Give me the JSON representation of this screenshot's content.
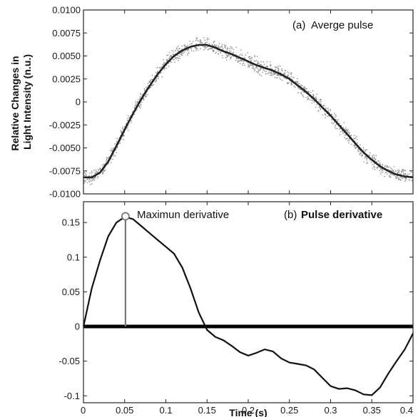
{
  "chart_data": [
    {
      "type": "scatter",
      "panel": "a",
      "annotation_prefix": "(a)",
      "annotation_text": "Averge pulse",
      "ylabel_lines": [
        "Relative Changes in",
        "Light Intensity (n.u.)"
      ],
      "xlim": [
        0,
        0.4
      ],
      "ylim": [
        -0.01,
        0.01
      ],
      "yticks": [
        "0.0100",
        "0.0075",
        "0.0050",
        "0.0025",
        "0",
        "-0.0025",
        "-0.0050",
        "-0.0075",
        "-0.0100"
      ],
      "grid": false,
      "series": [
        {
          "kind": "line",
          "color": "#222222",
          "x": [
            0,
            0.01,
            0.02,
            0.03,
            0.04,
            0.05,
            0.06,
            0.07,
            0.08,
            0.09,
            0.1,
            0.11,
            0.12,
            0.13,
            0.14,
            0.15,
            0.16,
            0.17,
            0.18,
            0.19,
            0.2,
            0.21,
            0.22,
            0.23,
            0.24,
            0.25,
            0.26,
            0.27,
            0.28,
            0.29,
            0.3,
            0.31,
            0.32,
            0.33,
            0.34,
            0.35,
            0.36,
            0.37,
            0.38,
            0.39,
            0.4
          ],
          "y": [
            -0.0082,
            -0.0082,
            -0.0077,
            -0.0065,
            -0.0048,
            -0.003,
            -0.0013,
            0.0003,
            0.0017,
            0.003,
            0.0041,
            0.005,
            0.0056,
            0.006,
            0.0062,
            0.0062,
            0.0059,
            0.0055,
            0.0052,
            0.0048,
            0.0044,
            0.004,
            0.0037,
            0.0034,
            0.003,
            0.0025,
            0.0018,
            0.0011,
            0.0003,
            -0.0006,
            -0.0015,
            -0.0025,
            -0.0035,
            -0.0045,
            -0.0055,
            -0.0063,
            -0.007,
            -0.0075,
            -0.0079,
            -0.0081,
            -0.0082
          ]
        },
        {
          "kind": "scatter",
          "color": "#8a8a8a",
          "description_of_points": "raw samples scattered about the average pulse",
          "spread": 0.0008,
          "count": 1400
        }
      ]
    },
    {
      "type": "line",
      "panel": "b",
      "annotation_prefix": "(b)",
      "annotation_text": "Pulse derivative",
      "marker_label": "Maximun derivative",
      "xlabel": "Time (s)",
      "xlim": [
        0,
        0.4
      ],
      "ylim": [
        -0.11,
        0.18
      ],
      "xticks": [
        "0",
        "0.05",
        "0.1",
        "0.15",
        "0.2",
        "0.25",
        "0.3",
        "0.35",
        "0.4"
      ],
      "yticks": [
        "0.15",
        "0.1",
        "0.05",
        "0",
        "-0.05",
        "-0.1"
      ],
      "grid": false,
      "marker": {
        "x": 0.051,
        "y": 0.159
      },
      "series": [
        {
          "kind": "line",
          "color": "#111111",
          "x": [
            0,
            0.01,
            0.02,
            0.03,
            0.04,
            0.05,
            0.06,
            0.07,
            0.08,
            0.09,
            0.1,
            0.11,
            0.12,
            0.13,
            0.14,
            0.15,
            0.16,
            0.17,
            0.18,
            0.19,
            0.2,
            0.21,
            0.22,
            0.23,
            0.24,
            0.25,
            0.26,
            0.27,
            0.28,
            0.29,
            0.3,
            0.31,
            0.32,
            0.33,
            0.34,
            0.35,
            0.36,
            0.37,
            0.38,
            0.39,
            0.4
          ],
          "y": [
            0,
            0.055,
            0.095,
            0.13,
            0.15,
            0.158,
            0.155,
            0.145,
            0.135,
            0.125,
            0.115,
            0.105,
            0.085,
            0.055,
            0.02,
            -0.005,
            -0.015,
            -0.02,
            -0.028,
            -0.037,
            -0.042,
            -0.038,
            -0.033,
            -0.036,
            -0.046,
            -0.052,
            -0.054,
            -0.056,
            -0.062,
            -0.074,
            -0.086,
            -0.09,
            -0.089,
            -0.092,
            -0.098,
            -0.099,
            -0.088,
            -0.068,
            -0.05,
            -0.033,
            -0.01
          ]
        },
        {
          "kind": "zero-baseline",
          "color": "#000000",
          "y": 0
        }
      ]
    }
  ]
}
